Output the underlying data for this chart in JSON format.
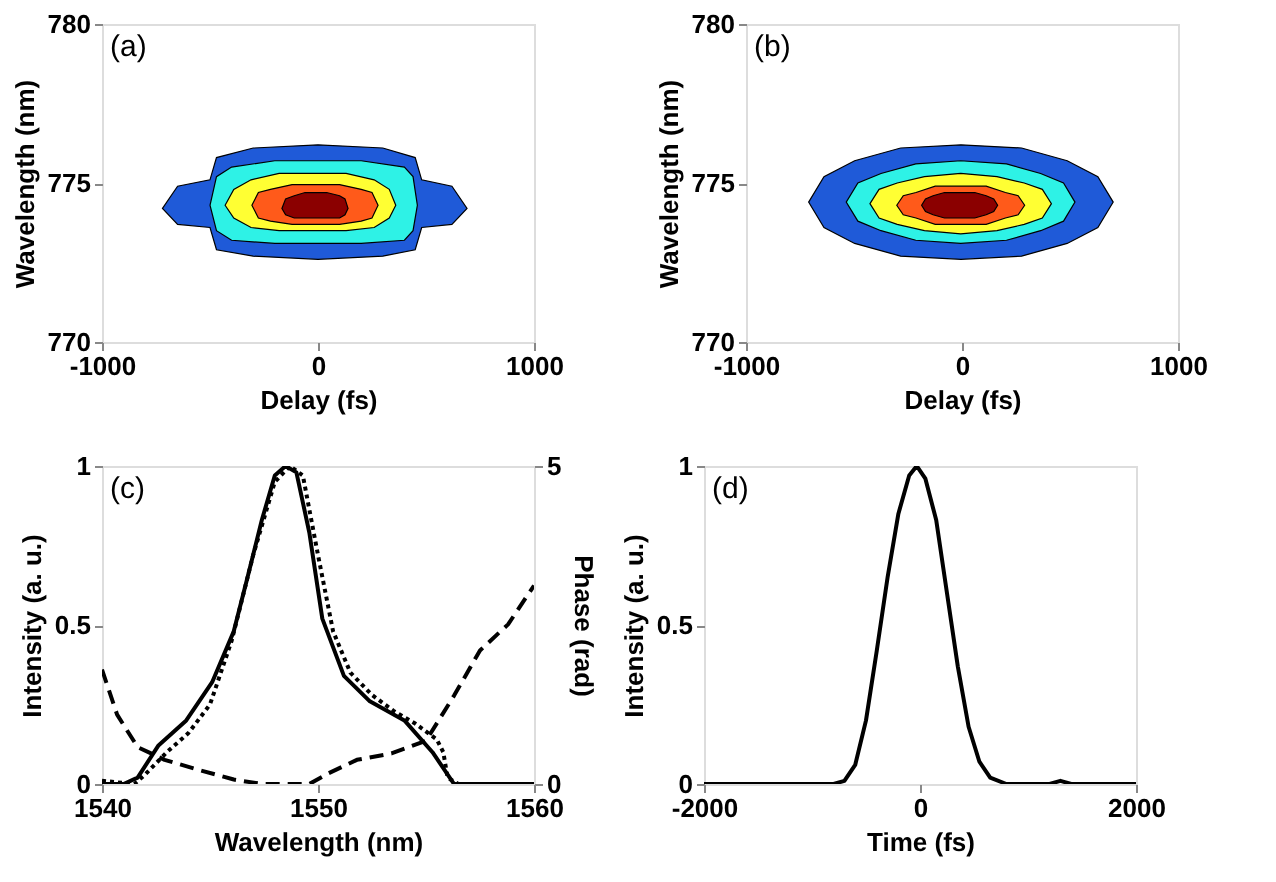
{
  "chart_data": [
    {
      "type": "area",
      "title": "(a)",
      "xlabel": "Delay (fs)",
      "ylabel": "Wavelength (nm)",
      "xlim": [
        -1000,
        1000
      ],
      "ylim": [
        770,
        780
      ],
      "xticks": [
        -1000,
        0,
        1000
      ],
      "yticks": [
        770,
        775,
        780
      ],
      "grid": false,
      "series": [
        {
          "color": "#1f5ad8",
          "x": [
            -720,
            -650,
            -500,
            -470,
            -300,
            0,
            300,
            450,
            480,
            620,
            690,
            620,
            480,
            450,
            300,
            0,
            -300,
            -470,
            -500,
            -650,
            -720
          ],
          "values": [
            774.2,
            774.9,
            775.1,
            775.8,
            776.1,
            776.2,
            776.1,
            775.8,
            775.1,
            774.9,
            774.2,
            773.7,
            773.6,
            772.9,
            772.7,
            772.6,
            772.7,
            772.9,
            773.6,
            773.7,
            774.2
          ]
        },
        {
          "color": "#2ef2e6",
          "x": [
            -500,
            -470,
            -400,
            -200,
            0,
            200,
            400,
            440,
            460,
            440,
            400,
            200,
            0,
            -200,
            -400,
            -470,
            -500
          ],
          "values": [
            774.3,
            775.2,
            775.5,
            775.7,
            775.7,
            775.7,
            775.5,
            775.2,
            774.3,
            773.5,
            773.2,
            773.1,
            773.1,
            773.1,
            773.2,
            773.5,
            774.3
          ]
        },
        {
          "color": "#ffff33",
          "x": [
            -430,
            -390,
            -310,
            -180,
            -30,
            130,
            260,
            330,
            360,
            330,
            260,
            130,
            -30,
            -180,
            -310,
            -390,
            -430
          ],
          "values": [
            774.3,
            774.8,
            775.1,
            775.3,
            775.3,
            775.3,
            775.1,
            774.8,
            774.3,
            773.9,
            773.6,
            773.5,
            773.5,
            773.5,
            773.6,
            773.9,
            774.3
          ]
        },
        {
          "color": "#ff5a1a",
          "x": [
            -306,
            -276,
            -220,
            -120,
            -14,
            100,
            200,
            250,
            278,
            250,
            200,
            100,
            -14,
            -120,
            -220,
            -276,
            -306
          ],
          "values": [
            774.3,
            774.7,
            774.8,
            774.95,
            774.95,
            774.95,
            774.8,
            774.7,
            774.3,
            773.9,
            773.8,
            773.7,
            773.7,
            773.7,
            773.8,
            773.9,
            774.3
          ]
        },
        {
          "color": "#8b0000",
          "x": [
            -167,
            -150,
            -110,
            -60,
            -14,
            40,
            100,
            125,
            139,
            125,
            100,
            40,
            -14,
            -60,
            -110,
            -150,
            -167
          ],
          "values": [
            774.2,
            774.5,
            774.6,
            774.7,
            774.7,
            774.7,
            774.6,
            774.5,
            774.2,
            774.0,
            773.9,
            773.9,
            773.9,
            773.9,
            773.9,
            774.0,
            774.2
          ]
        }
      ]
    },
    {
      "type": "area",
      "title": "(b)",
      "xlabel": "Delay (fs)",
      "ylabel": "Wavelength (nm)",
      "xlim": [
        -1000,
        1000
      ],
      "ylim": [
        770,
        780
      ],
      "xticks": [
        -1000,
        0,
        1000
      ],
      "yticks": [
        770,
        775,
        780
      ],
      "grid": false,
      "series": [
        {
          "color": "#1f5ad8",
          "x": [
            -710,
            -639,
            -497,
            -284,
            -5,
            276,
            487,
            629,
            700,
            629,
            487,
            276,
            -5,
            -284,
            -497,
            -639,
            -710
          ],
          "values": [
            774.4,
            775.2,
            775.7,
            776.1,
            776.2,
            776.1,
            775.7,
            775.2,
            774.4,
            773.6,
            773.1,
            772.7,
            772.6,
            772.7,
            773.1,
            773.6,
            774.4
          ]
        },
        {
          "color": "#2ef2e6",
          "x": [
            -536,
            -482,
            -375,
            -214,
            -6,
            206,
            364,
            470,
            523,
            470,
            364,
            206,
            -6,
            -214,
            -375,
            -482,
            -536
          ],
          "values": [
            774.4,
            775.0,
            775.3,
            775.6,
            775.7,
            775.6,
            775.3,
            775.0,
            774.4,
            773.8,
            773.5,
            773.2,
            773.1,
            773.2,
            773.5,
            773.8,
            774.4
          ]
        },
        {
          "color": "#ffff33",
          "x": [
            -426,
            -384,
            -300,
            -174,
            -6,
            162,
            288,
            372,
            414,
            372,
            288,
            162,
            -6,
            -174,
            -300,
            -384,
            -426
          ],
          "values": [
            774.35,
            774.8,
            775.0,
            775.2,
            775.3,
            775.2,
            775.0,
            774.8,
            774.35,
            773.9,
            773.7,
            773.5,
            773.4,
            773.5,
            773.7,
            773.9,
            774.35
          ]
        },
        {
          "color": "#ff5a1a",
          "x": [
            -302,
            -272,
            -213,
            -124,
            -6,
            112,
            201,
            260,
            290,
            260,
            201,
            112,
            -6,
            -124,
            -213,
            -272,
            -302
          ],
          "values": [
            774.3,
            774.6,
            774.7,
            774.9,
            774.9,
            774.9,
            774.7,
            774.6,
            774.3,
            774.0,
            773.9,
            773.7,
            773.7,
            773.7,
            773.9,
            774.0,
            774.3
          ]
        },
        {
          "color": "#8b0000",
          "x": [
            -187,
            -169,
            -134,
            -81,
            -11,
            59,
            112,
            147,
            165,
            147,
            112,
            59,
            -11,
            -81,
            -134,
            -169,
            -187
          ],
          "values": [
            774.3,
            774.5,
            774.6,
            774.7,
            774.7,
            774.7,
            774.6,
            774.5,
            774.3,
            774.1,
            774.0,
            773.9,
            773.9,
            773.9,
            774.0,
            774.1,
            774.3
          ]
        }
      ]
    },
    {
      "type": "line",
      "title": "(c)",
      "xlabel": "Wavelength (nm)",
      "ylabel": "Intensity (a. u.)",
      "y2label": "Phase (rad)",
      "xlim": [
        1540,
        1560
      ],
      "ylim": [
        0,
        1
      ],
      "y2lim": [
        0,
        5
      ],
      "xticks": [
        1540,
        1550,
        1560
      ],
      "yticks": [
        0,
        0.5,
        1
      ],
      "y2ticks": [
        0,
        5
      ],
      "grid": false,
      "series": [
        {
          "color": "#000000",
          "line_style": "solid",
          "x": [
            1540,
            1541,
            1541.65,
            1542.6,
            1543.9,
            1545.1,
            1546.1,
            1546.7,
            1547.4,
            1548,
            1548.5,
            1549,
            1549.6,
            1550.2,
            1551.2,
            1552.4,
            1554,
            1555.3,
            1556.3,
            1560
          ],
          "values": [
            0,
            0,
            0.02,
            0.12,
            0.2,
            0.32,
            0.48,
            0.64,
            0.83,
            0.97,
            1,
            0.98,
            0.79,
            0.52,
            0.34,
            0.26,
            0.2,
            0.1,
            0,
            0
          ]
        },
        {
          "color": "#000000",
          "line_style": "dotted",
          "x": [
            1540,
            1541.5,
            1542,
            1543,
            1544,
            1545,
            1546,
            1547,
            1548,
            1548.7,
            1549.3,
            1550,
            1550.7,
            1551.5,
            1552.5,
            1553.5,
            1554.5,
            1555.5,
            1555.8,
            1556,
            1556.5,
            1560
          ],
          "values": [
            0.01,
            0,
            0.03,
            0.1,
            0.16,
            0.25,
            0.45,
            0.72,
            0.95,
            1,
            0.97,
            0.72,
            0.48,
            0.35,
            0.28,
            0.23,
            0.19,
            0.14,
            0.1,
            0.02,
            0,
            0
          ]
        },
        {
          "color": "#000000",
          "line_style": "dashed",
          "axis": "y2",
          "x": [
            1540,
            1540.7,
            1541.65,
            1542.9,
            1544.5,
            1546.1,
            1547.4,
            1549.6,
            1550.5,
            1551.8,
            1553.4,
            1555,
            1556.3,
            1557.5,
            1558.8,
            1560
          ],
          "values": [
            1.8,
            1.09,
            0.58,
            0.38,
            0.22,
            0.07,
            0,
            0,
            0.17,
            0.38,
            0.48,
            0.68,
            1.39,
            2.1,
            2.51,
            3.12
          ]
        }
      ]
    },
    {
      "type": "line",
      "title": "(d)",
      "xlabel": "Time (fs)",
      "ylabel": "Intensity (a. u.)",
      "xlim": [
        -2000,
        2000
      ],
      "ylim": [
        0,
        1
      ],
      "xticks": [
        -2000,
        0,
        2000
      ],
      "yticks": [
        0,
        0.5,
        1
      ],
      "grid": false,
      "series": [
        {
          "color": "#000000",
          "line_style": "solid",
          "x": [
            -2000,
            -800,
            -700,
            -600,
            -500,
            -400,
            -300,
            -200,
            -100,
            -30,
            50,
            150,
            250,
            350,
            450,
            550,
            650,
            800,
            1200,
            1300,
            1400,
            2000
          ],
          "values": [
            0,
            0,
            0.01,
            0.06,
            0.2,
            0.42,
            0.65,
            0.85,
            0.97,
            1,
            0.96,
            0.83,
            0.6,
            0.37,
            0.18,
            0.07,
            0.02,
            0,
            0,
            0.01,
            0,
            0
          ]
        }
      ]
    }
  ]
}
